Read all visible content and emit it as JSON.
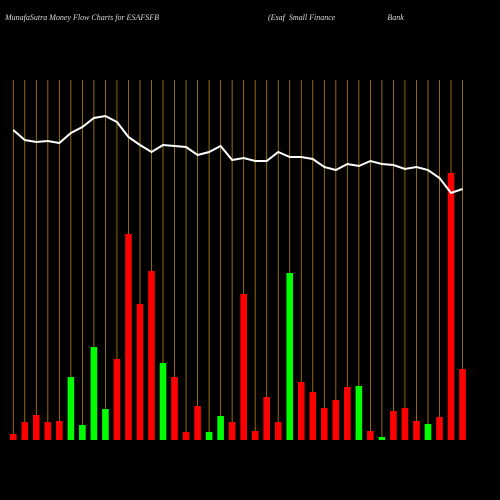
{
  "chart_data": {
    "type": "bar",
    "title": "MunafaSutra  Money Flow  Charts for ESAFSFB",
    "subtitle": "(Esaf  Small Finance                          Bank",
    "categories": [
      null,
      null,
      null,
      null,
      null,
      null,
      null,
      null,
      null,
      null,
      null,
      null,
      null,
      null,
      null,
      null,
      null,
      null,
      null,
      null,
      null,
      null,
      null,
      null,
      null,
      null,
      null,
      null,
      null,
      null,
      null,
      null,
      null,
      null,
      null,
      null,
      null,
      null,
      null,
      null
    ],
    "values": [
      6,
      18,
      25,
      18,
      19,
      63,
      15,
      93,
      31,
      81,
      206,
      136,
      169,
      77,
      63,
      8,
      34,
      8,
      24,
      18,
      146,
      9,
      43,
      18,
      167,
      58,
      48,
      32,
      40,
      53,
      54,
      9,
      3,
      29,
      32,
      19,
      16,
      23,
      267,
      71
    ],
    "colors": [
      "#ff0000",
      "#ff0000",
      "#ff0000",
      "#ff0000",
      "#ff0000",
      "#00ff00",
      "#00ff00",
      "#00ff00",
      "#00ff00",
      "#ff0000",
      "#ff0000",
      "#ff0000",
      "#ff0000",
      "#00ff00",
      "#ff0000",
      "#ff0000",
      "#ff0000",
      "#00ff00",
      "#00ff00",
      "#ff0000",
      "#ff0000",
      "#ff0000",
      "#ff0000",
      "#ff0000",
      "#00ff00",
      "#ff0000",
      "#ff0000",
      "#ff0000",
      "#ff0000",
      "#ff0000",
      "#00ff00",
      "#ff0000",
      "#00ff00",
      "#ff0000",
      "#ff0000",
      "#ff0000",
      "#00ff00",
      "#ff0000",
      "#ff0000",
      "#ff0000"
    ],
    "line": {
      "color": "#ffffff",
      "values": [
        310,
        300,
        298,
        299,
        297,
        307,
        313,
        322,
        324,
        318,
        303,
        295,
        288,
        295,
        294,
        293,
        285,
        288,
        294,
        280,
        282,
        279,
        279,
        288,
        283,
        283,
        281,
        273,
        270,
        276,
        274,
        279,
        276,
        275,
        271,
        273,
        270,
        262,
        247,
        251
      ]
    },
    "grid_color": "#b8860b",
    "ylim": [
      0,
      330
    ]
  }
}
